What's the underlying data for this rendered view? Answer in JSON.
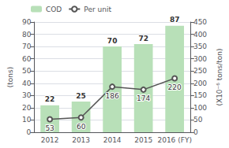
{
  "chart_data": {
    "type": "bar",
    "categories": [
      "2012",
      "2013",
      "2014",
      "2015",
      "2016 (FY)"
    ],
    "series": [
      {
        "name": "COD",
        "type": "bar",
        "color": "#b8e0b8",
        "values": [
          22,
          25,
          70,
          72,
          87
        ]
      },
      {
        "name": "Per unit",
        "type": "line",
        "axis": "y2",
        "color": "#555555",
        "marker": "circle",
        "values": [
          53,
          60,
          186,
          174,
          220
        ]
      }
    ],
    "ylabel": "(tons)",
    "y2label": "(X10⁻⁶ tons/ton)",
    "ylim": [
      0,
      90
    ],
    "yticks": [
      0,
      10,
      20,
      30,
      40,
      50,
      60,
      70,
      80,
      90
    ],
    "y2lim": [
      0,
      450
    ],
    "y2ticks": [
      0,
      50,
      100,
      150,
      200,
      250,
      300,
      350,
      400,
      450
    ],
    "grid": true,
    "legend": "upper left",
    "data_labels": true
  }
}
